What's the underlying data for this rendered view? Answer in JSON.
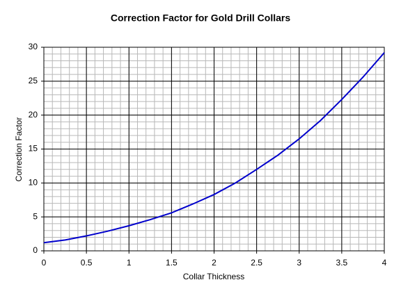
{
  "chart_data": {
    "type": "line",
    "title": "Correction Factor for Gold Drill Collars",
    "x_label": "Collar Thickness",
    "y_label": "Correction Factor",
    "x": [
      0,
      0.25,
      0.5,
      0.75,
      1,
      1.25,
      1.5,
      1.75,
      2,
      2.25,
      2.5,
      2.75,
      3,
      3.25,
      3.5,
      3.75,
      4
    ],
    "series": [
      {
        "color": "#0000cc",
        "values": [
          1.2,
          1.6,
          2.2,
          2.9,
          3.7,
          4.6,
          5.6,
          6.9,
          8.3,
          10.0,
          12.0,
          14.1,
          16.5,
          19.2,
          22.3,
          25.6,
          29.2
        ]
      }
    ],
    "xlim": [
      0,
      4
    ],
    "xticks": [
      0,
      0.5,
      1,
      1.5,
      2,
      2.5,
      3,
      3.5,
      4
    ],
    "ylim": [
      0,
      30
    ],
    "yticks": [
      0,
      5,
      10,
      15,
      20,
      25,
      30
    ],
    "grid": true,
    "minor_grid_step": {
      "x": 0.1,
      "y": 1
    }
  }
}
